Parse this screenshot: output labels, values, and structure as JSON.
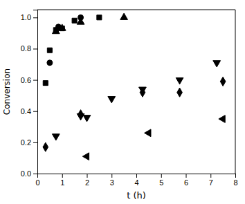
{
  "chart_data": {
    "type": "scatter",
    "xlabel": "t (h)",
    "ylabel": "Conversion",
    "color": "black",
    "xlim": [
      0,
      8
    ],
    "ylim": [
      0.0,
      1.05
    ],
    "xticks": [
      0,
      1,
      2,
      3,
      4,
      5,
      6,
      7,
      8
    ],
    "yticks": [
      {
        "value": 0.0,
        "label": "0.0"
      },
      0.2,
      0.4,
      0.6,
      0.8,
      {
        "value": 1.0,
        "label": "1.0"
      }
    ],
    "series": [
      {
        "marker": "square",
        "x": [
          0.33,
          0.5,
          0.75,
          1.0,
          1.5,
          2.5
        ],
        "values": [
          0.58,
          0.79,
          0.92,
          0.93,
          0.98,
          1.0
        ]
      },
      {
        "marker": "triangle-up",
        "x": [
          0.75,
          1.0,
          1.75,
          3.5
        ],
        "values": [
          0.91,
          0.93,
          0.97,
          1.0
        ]
      },
      {
        "marker": "circle",
        "x": [
          0.5,
          0.85,
          1.75
        ],
        "values": [
          0.71,
          0.94,
          1.0
        ]
      },
      {
        "marker": "triangle-down",
        "x": [
          0.75,
          1.75,
          2.0,
          3.0,
          4.25,
          5.75,
          7.25
        ],
        "values": [
          0.24,
          0.37,
          0.36,
          0.48,
          0.54,
          0.6,
          0.71
        ]
      },
      {
        "marker": "diamond",
        "x": [
          0.33,
          1.75,
          4.25,
          5.75,
          7.5
        ],
        "values": [
          0.17,
          0.38,
          0.52,
          0.52,
          0.59
        ]
      },
      {
        "marker": "triangle-left",
        "x": [
          2.0,
          4.5,
          7.5
        ],
        "values": [
          0.11,
          0.26,
          0.35
        ]
      }
    ]
  }
}
